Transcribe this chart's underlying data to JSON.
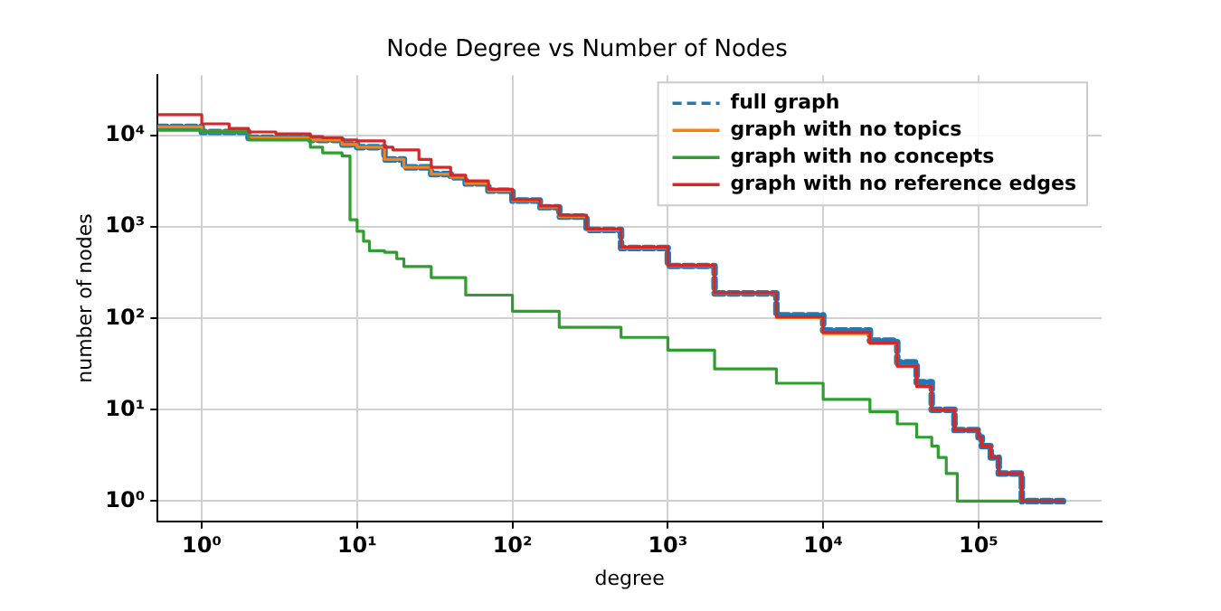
{
  "chart_data": {
    "type": "step",
    "title": "Node Degree vs Number of Nodes",
    "xlabel": "degree",
    "ylabel": "number of nodes",
    "log": "xy",
    "grid": true,
    "legend": "top right",
    "marker": "none",
    "xlim": [
      0.52,
      620000
    ],
    "ylim": [
      0.6,
      46000
    ],
    "xticks": [
      {
        "value": 1,
        "label": "10⁰"
      },
      {
        "value": 10,
        "label": "10¹"
      },
      {
        "value": 100,
        "label": "10²"
      },
      {
        "value": 1000,
        "label": "10³"
      },
      {
        "value": 10000,
        "label": "10⁴"
      },
      {
        "value": 100000,
        "label": "10⁵"
      }
    ],
    "yticks": [
      {
        "value": 1,
        "label": "10⁰"
      },
      {
        "value": 10,
        "label": "10¹"
      },
      {
        "value": 100,
        "label": "10²"
      },
      {
        "value": 1000,
        "label": "10³"
      },
      {
        "value": 10000,
        "label": "10⁴"
      }
    ],
    "series": [
      {
        "name": "full graph",
        "color": "#1f77b4",
        "line_style": "dashed",
        "x": [
          0.52,
          1,
          2,
          5,
          8,
          10,
          15,
          20,
          30,
          40,
          50,
          70,
          100,
          150,
          200,
          300,
          500,
          1000,
          2000,
          5000,
          10000,
          20000,
          30000,
          40000,
          50000,
          70000,
          100000,
          105000,
          120000,
          135000,
          190000,
          280000,
          350000
        ],
        "values": [
          12500,
          12500,
          11000,
          9500,
          9000,
          8000,
          7500,
          5500,
          4500,
          3800,
          3500,
          3000,
          2500,
          1950,
          1650,
          1300,
          930,
          590,
          375,
          188,
          108,
          74,
          57,
          33,
          20,
          10,
          6,
          5,
          4,
          3,
          2,
          1,
          1
        ]
      },
      {
        "name": "graph with no topics",
        "color": "#ff7f0e",
        "x": [
          0.52,
          1,
          2,
          5,
          8,
          10,
          15,
          20,
          30,
          40,
          50,
          70,
          100,
          150,
          200,
          300,
          500,
          1000,
          2000,
          5000,
          10000,
          20000,
          30000,
          40000,
          50000,
          70000
        ],
        "values": [
          12500,
          12500,
          11000,
          9500,
          9000,
          8000,
          7500,
          5500,
          4500,
          3800,
          3500,
          3000,
          2500,
          1950,
          1650,
          1300,
          930,
          590,
          375,
          188,
          102,
          68,
          53,
          30,
          18,
          10
        ]
      },
      {
        "name": "graph with no concepts",
        "color": "#2ca02c",
        "x": [
          0.52,
          1,
          2,
          5,
          6,
          8,
          9,
          10,
          11,
          12,
          15,
          18,
          20,
          30,
          50,
          100,
          200,
          500,
          1000,
          2000,
          5000,
          10000,
          20000,
          30000,
          40000,
          50000,
          55000,
          62000,
          73000,
          155000,
          230000
        ],
        "values": [
          11500,
          11500,
          11000,
          9000,
          7500,
          6500,
          6000,
          1200,
          900,
          700,
          550,
          530,
          450,
          370,
          280,
          180,
          120,
          80,
          62,
          45,
          28,
          19.5,
          13,
          9.5,
          7,
          5,
          4,
          3,
          2,
          1,
          1
        ]
      },
      {
        "name": "graph with no reference edges",
        "color": "#d62728",
        "x": [
          0.52,
          1,
          1.5,
          2,
          3,
          5,
          6,
          8,
          10,
          15,
          17,
          25,
          30,
          40,
          50,
          70,
          100,
          150,
          200,
          300,
          500,
          1000,
          2000,
          5000,
          10000,
          20000,
          30000,
          40000,
          50000,
          70000,
          100000,
          105000,
          120000,
          135000,
          190000,
          280000,
          350000
        ],
        "values": [
          17000,
          17000,
          13500,
          12000,
          11000,
          10500,
          9800,
          9500,
          9000,
          8800,
          7500,
          7000,
          5500,
          4500,
          3700,
          3200,
          2600,
          2000,
          1700,
          1350,
          950,
          600,
          380,
          190,
          104,
          70,
          54,
          30,
          18,
          10,
          6,
          5,
          4,
          3,
          2,
          1,
          1
        ]
      }
    ]
  }
}
